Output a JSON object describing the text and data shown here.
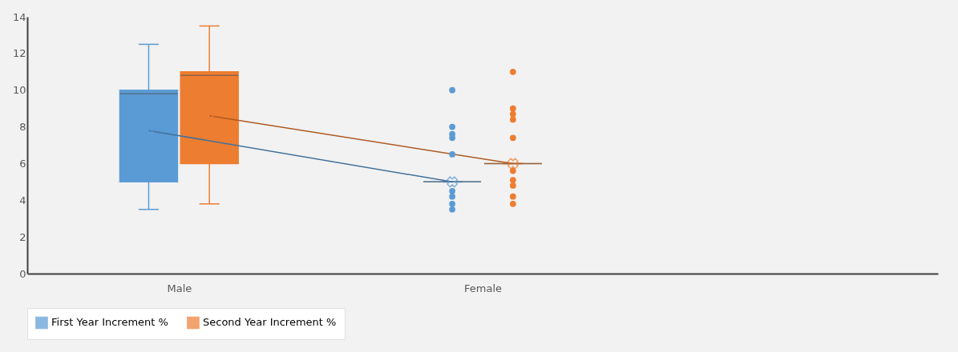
{
  "chart_data": {
    "type": "box",
    "categories": [
      "Male",
      "Female",
      null
    ],
    "series": [
      {
        "name": "First Year Increment %",
        "color": "#5b9bd5",
        "boxes": [
          {
            "low": 3.5,
            "q1": 5,
            "median": 9.8,
            "q3": 10,
            "high": 12.5,
            "mean": 7.8
          },
          {
            "low": 5,
            "q1": 5,
            "median": 5,
            "q3": 5,
            "high": 5,
            "mean": 5,
            "outliers": [
              10,
              8,
              7.6,
              7.4,
              6.5,
              4.5,
              4.2,
              3.8,
              3.5
            ]
          },
          null
        ]
      },
      {
        "name": "Second Year Increment %",
        "color": "#ed7d31",
        "boxes": [
          {
            "low": 3.8,
            "q1": 6,
            "median": 10.8,
            "q3": 11,
            "high": 13.5,
            "mean": 8.6
          },
          {
            "low": 6,
            "q1": 6,
            "median": 6,
            "q3": 6,
            "high": 6,
            "mean": 6,
            "outliers": [
              11,
              9,
              8.7,
              8.4,
              7.4,
              5.6,
              5.1,
              4.8,
              4.2,
              3.8
            ]
          },
          null
        ]
      },
      {
        "type": "line",
        "color": "#41719c",
        "values": [
          7.8,
          5,
          null
        ]
      },
      {
        "type": "line",
        "color": "#ae5a21",
        "values": [
          8.6,
          6,
          null
        ]
      }
    ],
    "grid": false,
    "ylim": [
      0,
      14
    ],
    "yticks": [
      0,
      2,
      4,
      6,
      8,
      10,
      12,
      14
    ],
    "legend": "bottom"
  }
}
